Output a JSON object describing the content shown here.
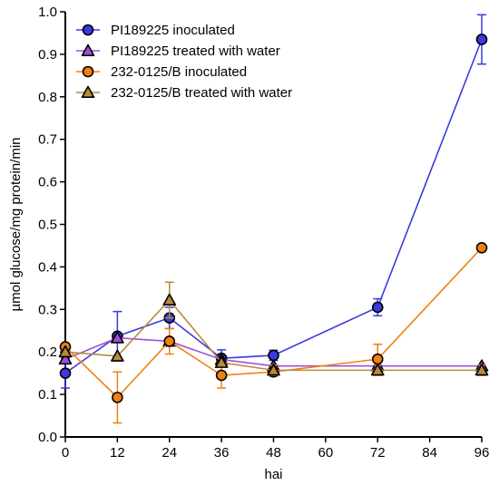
{
  "chart_data": {
    "type": "line",
    "xlabel": "hai",
    "ylabel": "µmol glucose/mg protein/min",
    "xlim": [
      0,
      96
    ],
    "ylim": [
      0,
      1.0
    ],
    "x_ticks": [
      0,
      12,
      24,
      36,
      48,
      60,
      72,
      84,
      96
    ],
    "y_ticks": [
      0.0,
      0.1,
      0.2,
      0.3,
      0.4,
      0.5,
      0.6,
      0.7,
      0.8,
      0.9,
      1.0
    ],
    "x_tick_labels": [
      "0",
      "12",
      "24",
      "36",
      "48",
      "60",
      "72",
      "84",
      "96"
    ],
    "y_tick_labels": [
      "0.0",
      "0.1",
      "0.2",
      "0.3",
      "0.4",
      "0.5",
      "0.6",
      "0.7",
      "0.8",
      "0.9",
      "1.0"
    ],
    "grid": false,
    "legend_position": "top-left",
    "series": [
      {
        "name": "PI189225 inoculated",
        "color": "#3a3ae0",
        "marker": "circle",
        "x": [
          0,
          12,
          24,
          36,
          48,
          72,
          96
        ],
        "y": [
          0.15,
          0.237,
          0.28,
          0.185,
          0.192,
          0.305,
          0.935
        ],
        "err": [
          0.035,
          0.058,
          0.025,
          0.02,
          0.012,
          0.02,
          0.058
        ]
      },
      {
        "name": "PI189225 treated with water",
        "color": "#a050d8",
        "marker": "triangle",
        "x": [
          0,
          12,
          24,
          36,
          48,
          72,
          96
        ],
        "y": [
          0.183,
          0.233,
          0.225,
          0.182,
          0.167,
          0.167,
          0.167
        ],
        "err": [
          0.0,
          0.0,
          0.0,
          0.0,
          0.0,
          0.0,
          0.0
        ]
      },
      {
        "name": "232-0125/B inoculated",
        "color": "#f08010",
        "marker": "circle",
        "x": [
          0,
          12,
          24,
          36,
          48,
          72,
          96
        ],
        "y": [
          0.212,
          0.093,
          0.225,
          0.145,
          0.153,
          0.183,
          0.445
        ],
        "err": [
          0.0,
          0.06,
          0.03,
          0.03,
          0.01,
          0.035,
          0.0
        ]
      },
      {
        "name": "232-0125/B treated with water",
        "color": "#b88a3a",
        "marker": "triangle",
        "x": [
          0,
          12,
          24,
          36,
          48,
          72,
          96
        ],
        "y": [
          0.2,
          0.19,
          0.322,
          0.175,
          0.157,
          0.157,
          0.157
        ],
        "err": [
          0.0,
          0.0,
          0.042,
          0.0,
          0.012,
          0.012,
          0.012
        ]
      }
    ]
  }
}
